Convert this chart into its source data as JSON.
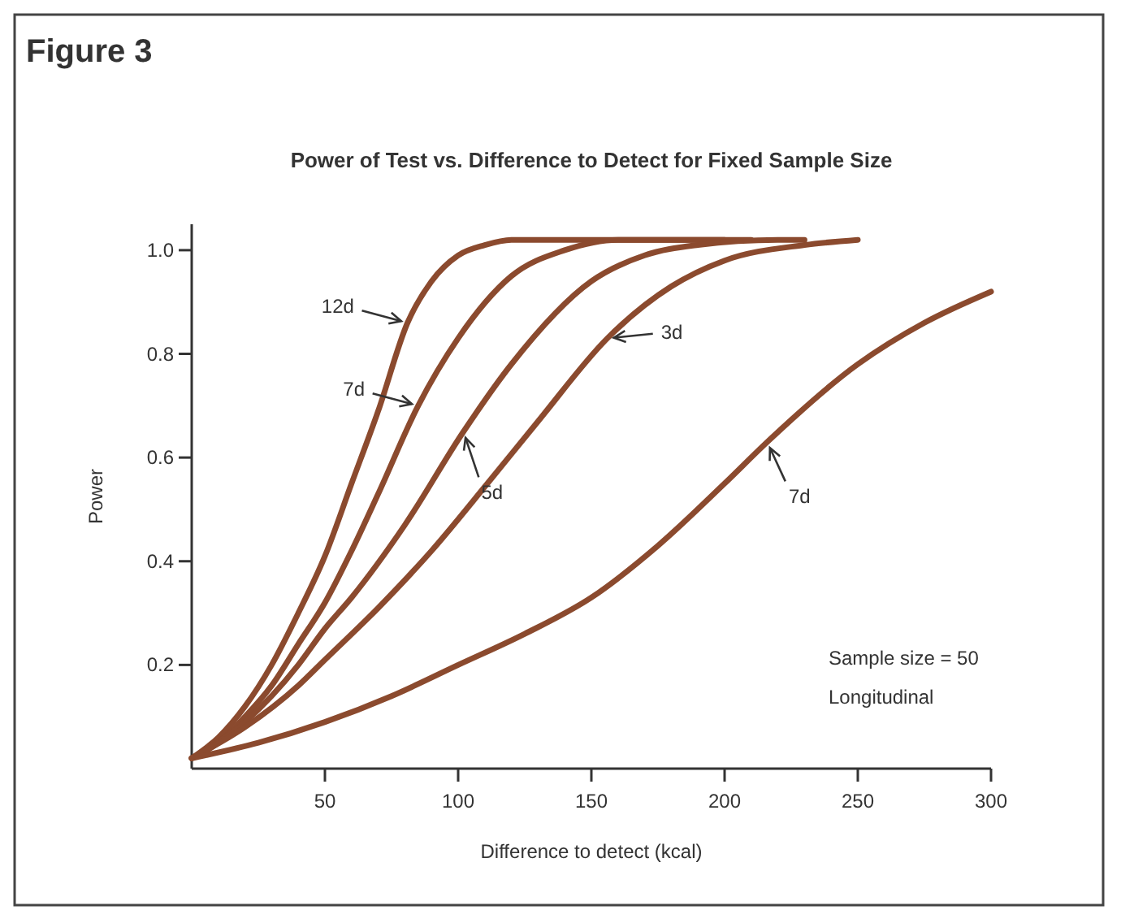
{
  "chart_data": {
    "type": "line",
    "title": "Figure 3",
    "subtitle": "Power of Test vs. Difference to Detect for Fixed Sample Size",
    "xlabel": "Difference to detect (kcal)",
    "ylabel": "Power",
    "xlim": [
      0,
      300
    ],
    "xticks": [
      50,
      100,
      150,
      200,
      250,
      300
    ],
    "ylim": [
      0,
      1.05
    ],
    "yticks": [
      0.2,
      0.4,
      0.6,
      0.8,
      {
        "value": 1,
        "label": "1.0"
      }
    ],
    "grid": false,
    "marker": "none",
    "line_style": "solid",
    "series": [
      {
        "color": "#8b4a2e",
        "x": [
          0,
          10,
          20,
          30,
          40,
          50,
          60,
          70,
          81,
          90,
          100,
          110,
          120,
          140,
          200
        ],
        "values": [
          0.02,
          0.06,
          0.12,
          0.2,
          0.3,
          0.41,
          0.55,
          0.69,
          0.86,
          0.94,
          0.99,
          1.01,
          1.02,
          1.02,
          1.02
        ]
      },
      {
        "color": "#8b4a2e",
        "x": [
          0,
          10,
          20,
          30,
          40,
          50,
          60,
          70,
          85,
          100,
          120,
          140,
          160,
          210
        ],
        "values": [
          0.02,
          0.05,
          0.1,
          0.16,
          0.24,
          0.32,
          0.42,
          0.53,
          0.7,
          0.83,
          0.95,
          1.0,
          1.02,
          1.02
        ]
      },
      {
        "color": "#8b4a2e",
        "x": [
          0,
          20,
          40,
          50,
          60,
          80,
          102,
          120,
          150,
          170,
          190,
          220,
          230
        ],
        "values": [
          0.02,
          0.09,
          0.2,
          0.27,
          0.33,
          0.47,
          0.65,
          0.78,
          0.94,
          0.99,
          1.01,
          1.02,
          1.02
        ]
      },
      {
        "color": "#8b4a2e",
        "x": [
          0,
          20,
          40,
          50,
          70,
          90,
          111,
          130,
          156,
          180,
          200,
          230,
          250
        ],
        "values": [
          0.02,
          0.08,
          0.16,
          0.21,
          0.31,
          0.42,
          0.55,
          0.67,
          0.83,
          0.93,
          0.98,
          1.01,
          1.02
        ]
      },
      {
        "color": "#8b4a2e",
        "x": [
          0,
          25,
          50,
          75,
          100,
          125,
          150,
          175,
          200,
          216,
          250,
          275,
          300
        ],
        "values": [
          0.02,
          0.05,
          0.09,
          0.14,
          0.2,
          0.26,
          0.33,
          0.43,
          0.55,
          0.63,
          0.78,
          0.86,
          0.92
        ]
      }
    ],
    "annotations": [
      {
        "text": "12d",
        "x": 81,
        "y": 0.86
      },
      {
        "text": "7d",
        "x": 85,
        "y": 0.7
      },
      {
        "text": "5d",
        "x": 102,
        "y": 0.65
      },
      {
        "text": "3d",
        "x": 156,
        "y": 0.83
      },
      {
        "text": "7d",
        "x": 216,
        "y": 0.63
      },
      "Sample size = 50",
      "Longitudinal"
    ]
  }
}
